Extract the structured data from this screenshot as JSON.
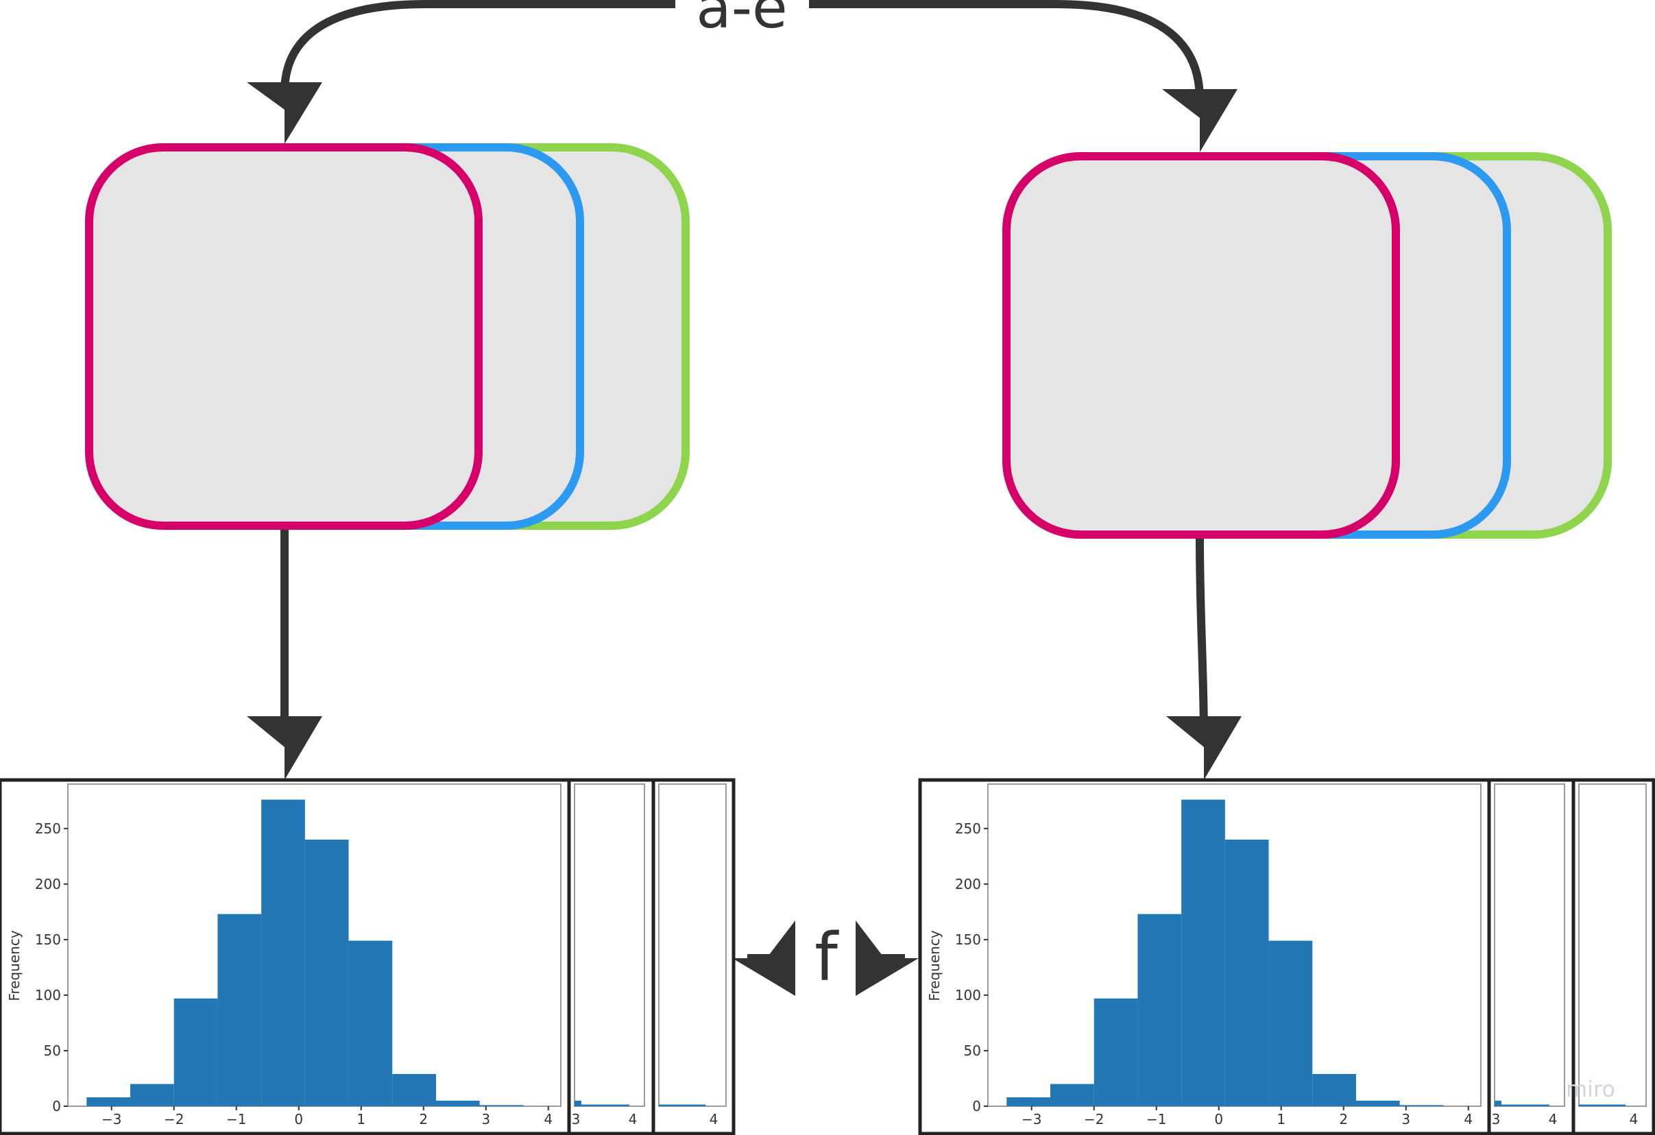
{
  "labels": {
    "top_arrow": "a-e",
    "middle_arrow": "f"
  },
  "watermark": "miro",
  "colors": {
    "stack_front": "#d6006a",
    "stack_middle": "#2b9af0",
    "stack_back": "#8ed44c",
    "card_fill": "#e5e5e5",
    "arrow": "#333333",
    "bar": "#2277b4"
  },
  "chart_data": [
    {
      "type": "bar",
      "ylabel": "Frequency",
      "bin_edges": [
        -3.4,
        -2.7,
        -2.0,
        -1.3,
        -0.6,
        0.1,
        0.8,
        1.5,
        2.2,
        2.9,
        3.6
      ],
      "values": [
        8,
        20,
        97,
        173,
        276,
        240,
        149,
        29,
        5,
        1
      ],
      "xlim": [
        -3.7,
        4.2
      ],
      "ylim": [
        0,
        290
      ],
      "xticks": [
        "−3",
        "−2",
        "−1",
        "0",
        "1",
        "2",
        "3",
        "4"
      ],
      "yticks": [
        "0",
        "50",
        "100",
        "150",
        "200",
        "250"
      ],
      "partial_panel_xticks": [
        "3",
        "4"
      ],
      "partial_panel2_xticks": [
        "4"
      ]
    },
    {
      "type": "bar",
      "ylabel": "Frequency",
      "bin_edges": [
        -3.4,
        -2.7,
        -2.0,
        -1.3,
        -0.6,
        0.1,
        0.8,
        1.5,
        2.2,
        2.9,
        3.6
      ],
      "values": [
        8,
        20,
        97,
        173,
        276,
        240,
        149,
        29,
        5,
        1
      ],
      "xlim": [
        -3.7,
        4.2
      ],
      "ylim": [
        0,
        290
      ],
      "xticks": [
        "−3",
        "−2",
        "−1",
        "0",
        "1",
        "2",
        "3",
        "4"
      ],
      "yticks": [
        "0",
        "50",
        "100",
        "150",
        "200",
        "250"
      ],
      "partial_panel_xticks": [
        "3",
        "4"
      ],
      "partial_panel2_xticks": [
        "4"
      ]
    }
  ]
}
